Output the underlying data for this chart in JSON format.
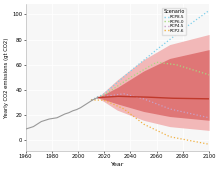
{
  "title": "",
  "xlabel": "Year",
  "ylabel": "Yearly CO2 emissions (gt CO2)",
  "xlim": [
    1960,
    2100
  ],
  "ylim": [
    -8,
    108
  ],
  "yticks": [
    0,
    20,
    40,
    60,
    80,
    100
  ],
  "xticks": [
    1960,
    1980,
    2000,
    2020,
    2040,
    2060,
    2080,
    2100
  ],
  "bg_color": "#ffffff",
  "plot_bg_color": "#f7f7f7",
  "historical_color": "#999999",
  "median_color": "#c0392b",
  "band_95_color": "#f2b8b8",
  "band_80_color": "#d96060",
  "rcp85_color": "#7ecfea",
  "rcp60_color": "#a8d880",
  "rcp45_color": "#c8a0c8",
  "rcp26_color": "#f0b040",
  "legend_title": "Scenario",
  "legend_labels": [
    "RCP8.5",
    "RCP6.0",
    "RCP4.5",
    "RCP2.6"
  ],
  "hist_years": [
    1960,
    1963,
    1966,
    1969,
    1972,
    1975,
    1978,
    1981,
    1984,
    1987,
    1990,
    1993,
    1996,
    1999,
    2002,
    2005,
    2008,
    2011,
    2015
  ],
  "hist_values": [
    9,
    10,
    11,
    13,
    15,
    16,
    17,
    17.5,
    18,
    19.5,
    21,
    22,
    23.5,
    24.5,
    26,
    28,
    30,
    32,
    34
  ]
}
